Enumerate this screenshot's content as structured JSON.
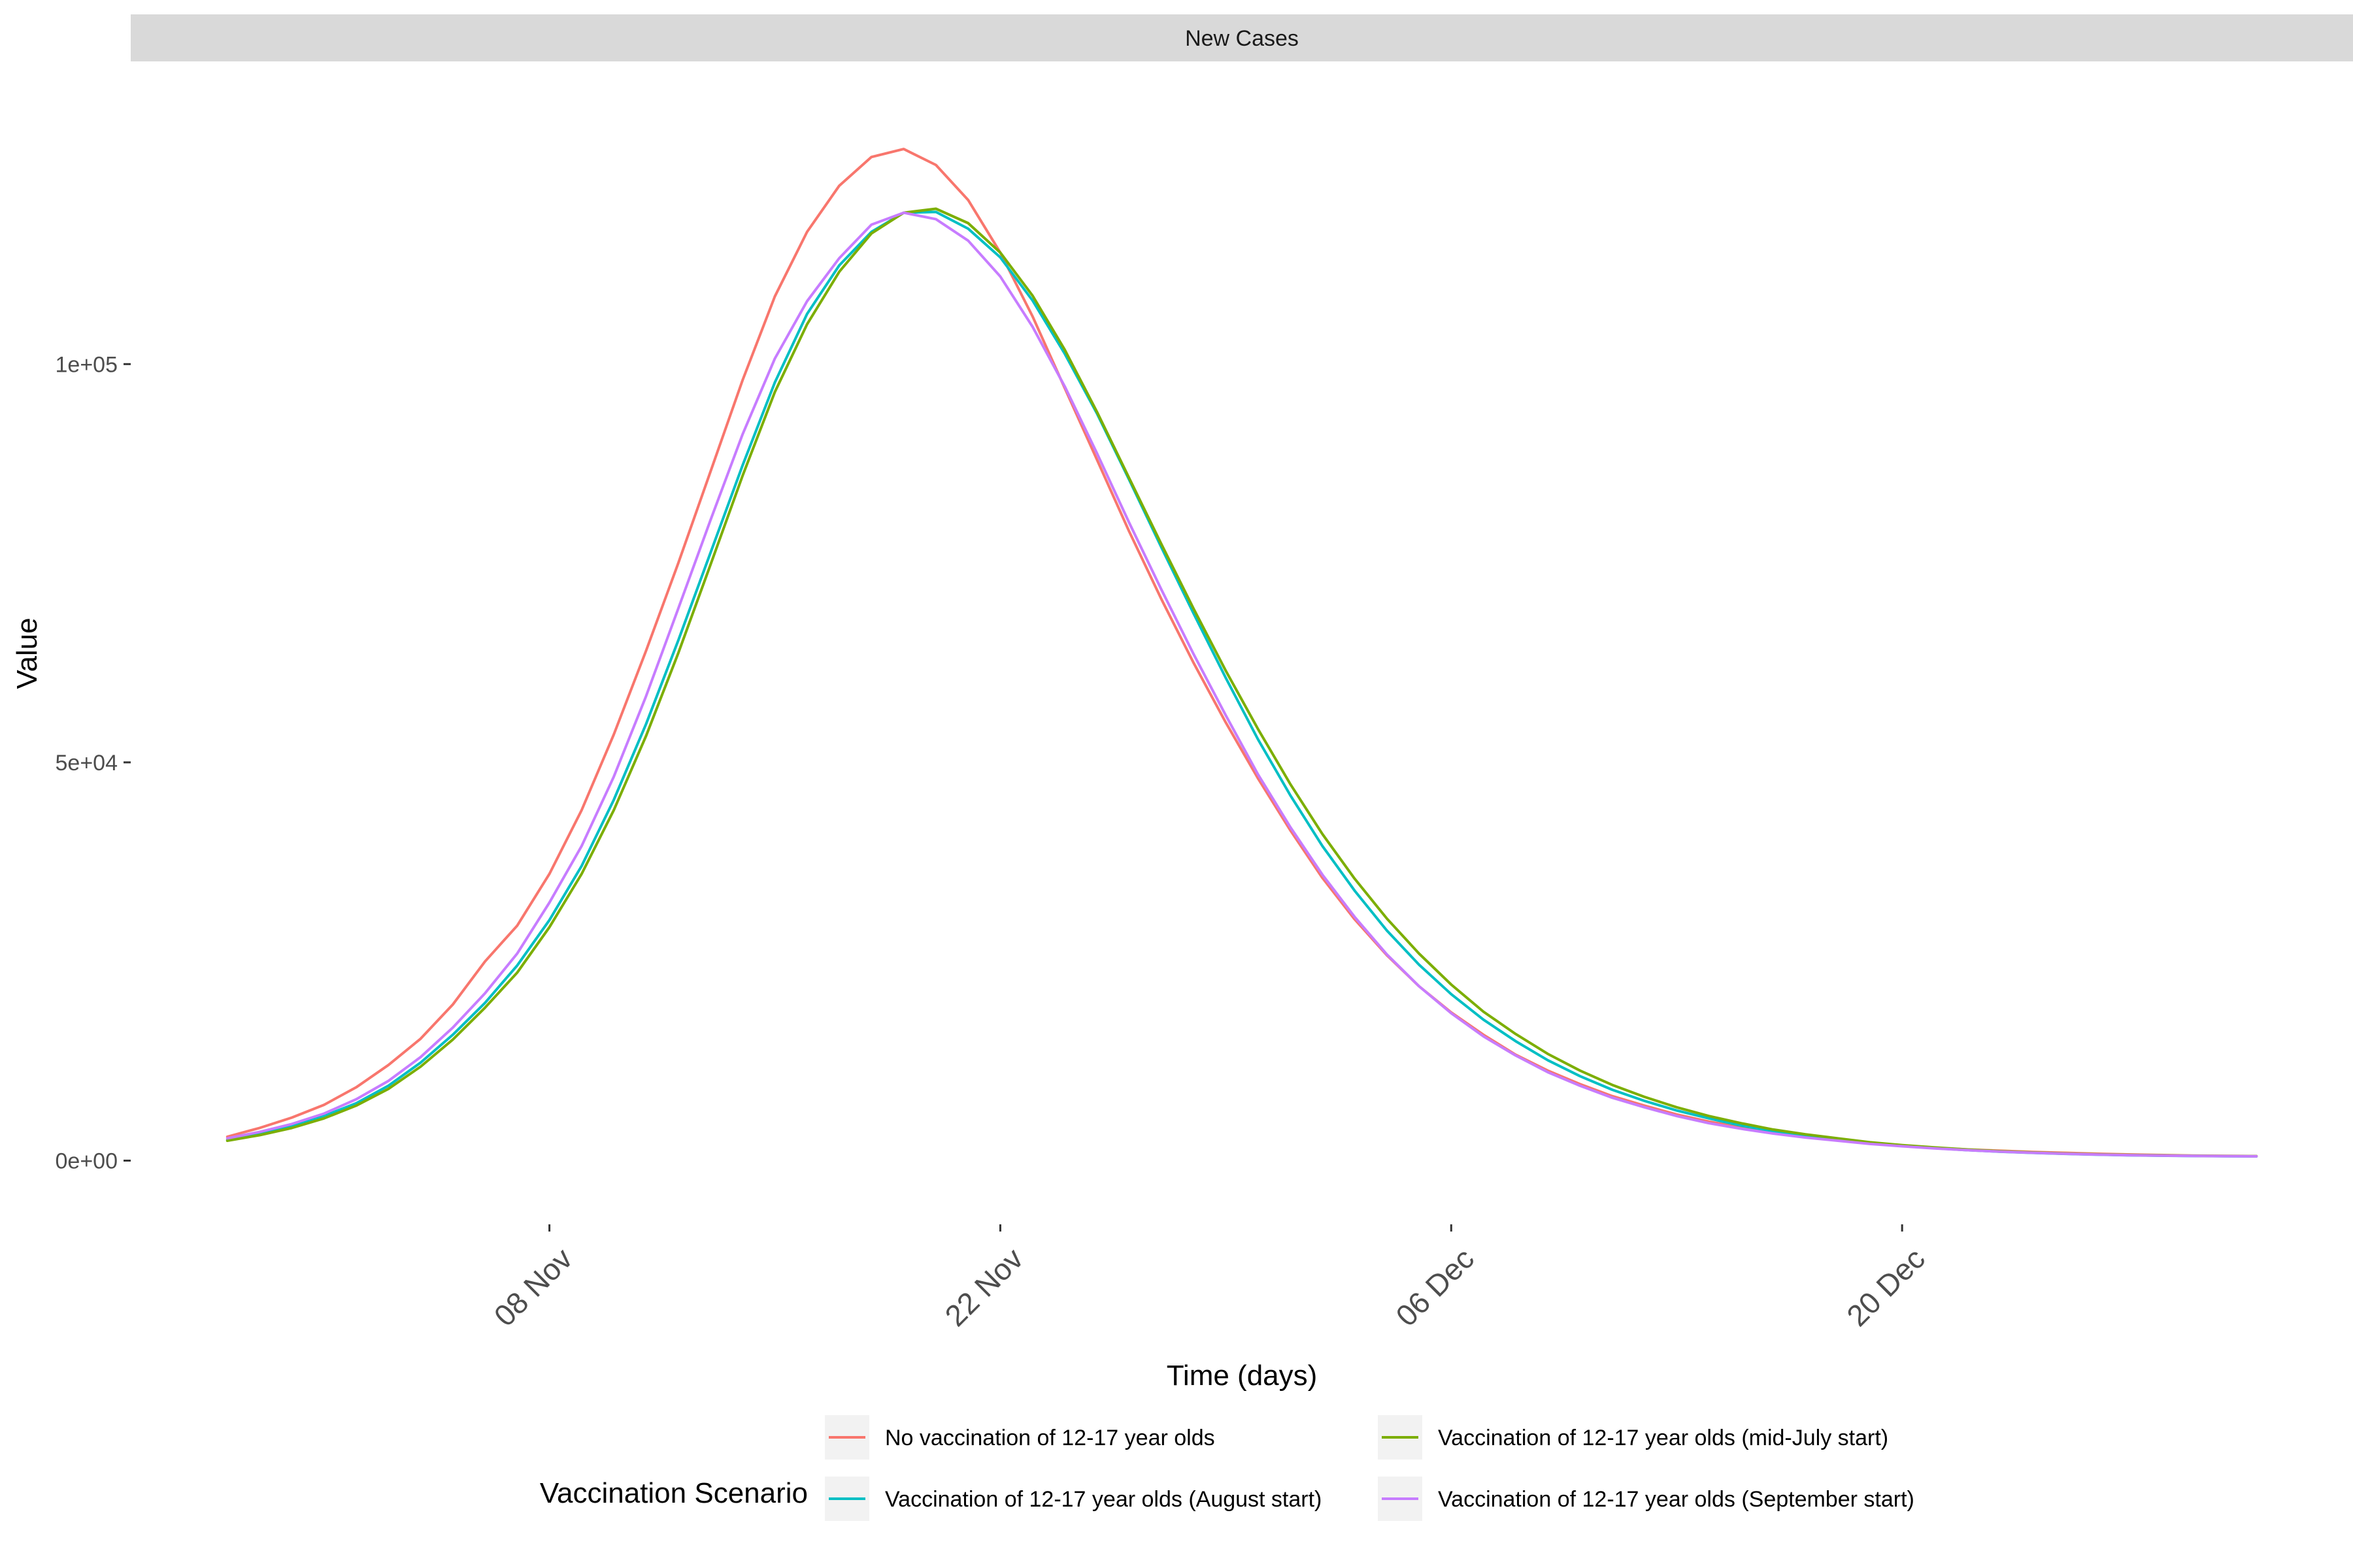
{
  "chart_data": {
    "type": "line",
    "facet_label": "New Cases",
    "xlabel": "Time (days)",
    "ylabel": "Value",
    "x_start": "2021-10-29",
    "x_end": "2021-12-31",
    "x_range": [
      "2021-10-26",
      "2022-01-03"
    ],
    "ylim": [
      -8000,
      138000
    ],
    "x_ticks": [
      {
        "date": "2021-11-08",
        "label": "08 Nov"
      },
      {
        "date": "2021-11-22",
        "label": "22 Nov"
      },
      {
        "date": "2021-12-06",
        "label": "06 Dec"
      },
      {
        "date": "2021-12-20",
        "label": "20 Dec"
      }
    ],
    "y_ticks": [
      {
        "value": 0,
        "label": "0e+00"
      },
      {
        "value": 50000,
        "label": "5e+04"
      },
      {
        "value": 100000,
        "label": "1e+05"
      }
    ],
    "grid": false,
    "legend_position": "bottom",
    "legend_title": "Vaccination Scenario",
    "series": [
      {
        "name": "No vaccination of 12-17 year olds",
        "color": "#F8766D",
        "values": [
          3000,
          4100,
          5400,
          7000,
          9200,
          12000,
          15300,
          19600,
          25000,
          29500,
          36000,
          44000,
          53500,
          64000,
          75000,
          86500,
          98000,
          108500,
          116600,
          122400,
          126000,
          127000,
          125000,
          120600,
          114000,
          106000,
          97000,
          88000,
          79000,
          70500,
          62500,
          55000,
          48000,
          41500,
          35500,
          30300,
          25800,
          21900,
          18600,
          15800,
          13300,
          11300,
          9600,
          8100,
          6900,
          5800,
          4900,
          4200,
          3600,
          3000,
          2600,
          2200,
          1900,
          1600,
          1400,
          1250,
          1100,
          980,
          870,
          780,
          700,
          640,
          600,
          560
        ]
      },
      {
        "name": "Vaccination of 12-17 year olds (August start)",
        "color": "#00BFC4",
        "values": [
          2600,
          3300,
          4300,
          5600,
          7200,
          9400,
          12300,
          15800,
          19800,
          24500,
          30200,
          37000,
          45300,
          54800,
          65300,
          76300,
          87300,
          97700,
          106300,
          112400,
          116600,
          119000,
          119100,
          117000,
          113400,
          108000,
          101300,
          93800,
          85500,
          77000,
          68700,
          60600,
          52900,
          45900,
          39500,
          33900,
          28900,
          24600,
          20900,
          17700,
          15000,
          12600,
          10600,
          8900,
          7500,
          6300,
          5300,
          4400,
          3700,
          3100,
          2600,
          2200,
          1850,
          1560,
          1320,
          1130,
          980,
          860,
          760,
          680,
          620,
          580,
          550,
          530
        ]
      },
      {
        "name": "Vaccination of 12-17 year olds (mid-July start)",
        "color": "#7CAE00",
        "values": [
          2500,
          3200,
          4100,
          5300,
          6900,
          9000,
          11800,
          15200,
          19200,
          23600,
          29300,
          36000,
          44000,
          53300,
          63700,
          74800,
          86000,
          96500,
          105000,
          111600,
          116400,
          119000,
          119500,
          117700,
          114000,
          108600,
          101800,
          94000,
          85700,
          77400,
          69300,
          61500,
          54200,
          47300,
          41000,
          35400,
          30400,
          26000,
          22100,
          18700,
          15900,
          13400,
          11300,
          9500,
          8000,
          6700,
          5600,
          4700,
          3900,
          3300,
          2800,
          2300,
          1950,
          1650,
          1400,
          1190,
          1030,
          900,
          800,
          720,
          660,
          610,
          580,
          560
        ]
      },
      {
        "name": "Vaccination of 12-17 year olds (September start)",
        "color": "#C77CFF",
        "values": [
          2800,
          3600,
          4600,
          5900,
          7700,
          10000,
          13000,
          16700,
          21000,
          26000,
          32400,
          39500,
          48200,
          58300,
          69300,
          80400,
          91200,
          100700,
          107900,
          113300,
          117500,
          119000,
          118200,
          115500,
          111000,
          104700,
          97200,
          88800,
          80100,
          71700,
          63600,
          55900,
          48500,
          41900,
          35900,
          30600,
          25900,
          21900,
          18500,
          15600,
          13200,
          11100,
          9400,
          7900,
          6700,
          5600,
          4700,
          4000,
          3400,
          2900,
          2500,
          2100,
          1800,
          1540,
          1320,
          1140,
          990,
          870,
          770,
          690,
          630,
          590,
          560,
          540
        ]
      }
    ]
  }
}
